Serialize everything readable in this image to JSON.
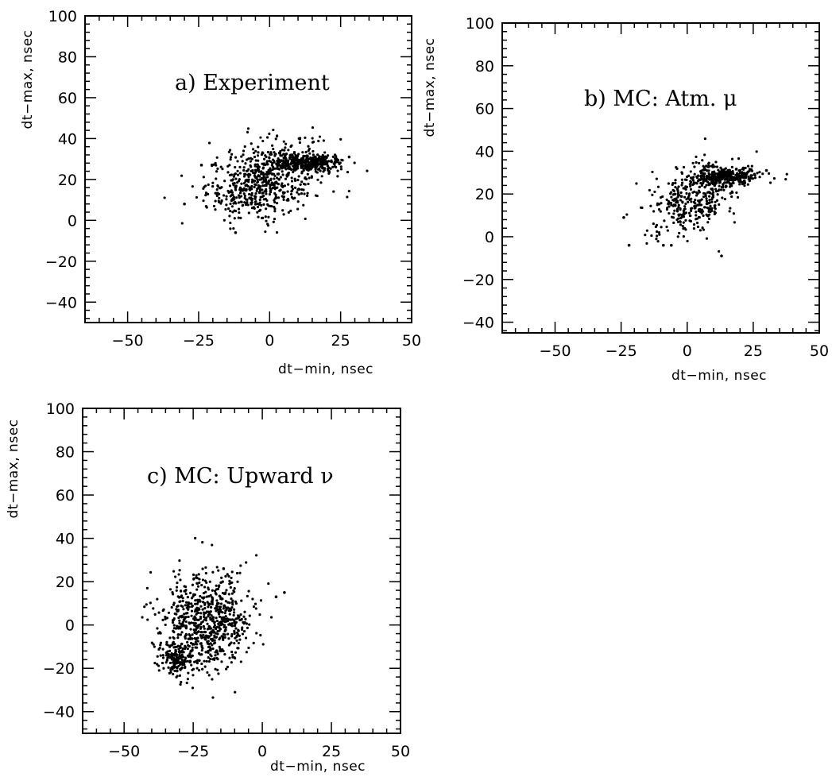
{
  "chart_data": [
    {
      "type": "scatter",
      "panel": "a",
      "title": "a) Experiment",
      "xlabel": "dt−min, nsec",
      "ylabel": "dt−max, nsec",
      "xlim": [
        -65,
        50
      ],
      "ylim": [
        -50,
        100
      ],
      "x_ticks": [
        "-50",
        "-25",
        "0",
        "25",
        "50"
      ],
      "y_ticks": [
        "100",
        "80",
        "60",
        "40",
        "20",
        "0",
        "-20",
        "-40"
      ],
      "clusters": [
        {
          "center": [
            -2,
            20
          ],
          "spread": [
            10,
            9
          ],
          "count": 650,
          "note": "diffuse band"
        },
        {
          "center": [
            14,
            28
          ],
          "spread": [
            6,
            2.2
          ],
          "count": 320,
          "note": "dense core"
        }
      ],
      "points": [
        [
          -30,
          8
        ],
        [
          -12,
          -6
        ],
        [
          -24,
          27
        ],
        [
          28,
          31
        ]
      ]
    },
    {
      "type": "scatter",
      "panel": "b",
      "title": "b) MC: Atm. μ",
      "xlabel": "dt−min, nsec",
      "ylabel": "dt−max, nsec",
      "xlim": [
        -70,
        50
      ],
      "ylim": [
        -45,
        100
      ],
      "x_ticks": [
        "-50",
        "-25",
        "0",
        "25",
        "50"
      ],
      "y_ticks": [
        "100",
        "80",
        "60",
        "40",
        "20",
        "0",
        "-20",
        "-40"
      ],
      "clusters": [
        {
          "center": [
            2,
            18
          ],
          "spread": [
            8,
            8
          ],
          "count": 380,
          "note": "diffuse band"
        },
        {
          "center": [
            15,
            28
          ],
          "spread": [
            6,
            2
          ],
          "count": 300,
          "note": "dense core"
        }
      ],
      "points": [
        [
          -24,
          9
        ],
        [
          -22,
          -4
        ],
        [
          -9,
          -4
        ],
        [
          -6,
          -4
        ],
        [
          13,
          -9
        ],
        [
          30,
          31
        ]
      ]
    },
    {
      "type": "scatter",
      "panel": "c",
      "title": "c) MC: Upward ν",
      "xlabel": "dt−min, nsec",
      "ylabel": "dt−max, nsec",
      "xlim": [
        -65,
        50
      ],
      "ylim": [
        -50,
        100
      ],
      "x_ticks": [
        "-50",
        "-25",
        "0",
        "25",
        "50"
      ],
      "y_ticks": [
        "100",
        "80",
        "60",
        "40",
        "20",
        "0",
        "-20",
        "-40"
      ],
      "clusters": [
        {
          "center": [
            -20,
            2
          ],
          "spread": [
            8,
            11
          ],
          "count": 700,
          "note": "main blob"
        },
        {
          "center": [
            -31,
            -16
          ],
          "spread": [
            3,
            4
          ],
          "count": 160,
          "note": "dense core"
        }
      ],
      "points": [
        [
          8,
          15
        ],
        [
          5,
          13
        ],
        [
          -14,
          26
        ]
      ]
    }
  ]
}
